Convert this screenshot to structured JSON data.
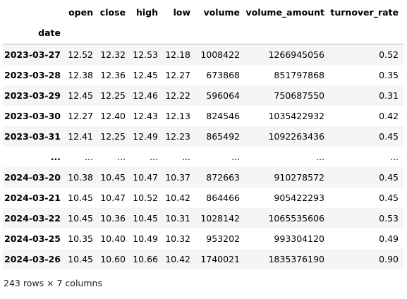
{
  "table": {
    "columns": [
      "open",
      "close",
      "high",
      "low",
      "volume",
      "volume_amount",
      "turnover_rate"
    ],
    "index_name": "date",
    "rows": [
      {
        "index": "2023-03-27",
        "values": [
          "12.52",
          "12.32",
          "12.53",
          "12.18",
          "1008422",
          "1266945056",
          "0.52"
        ]
      },
      {
        "index": "2023-03-28",
        "values": [
          "12.38",
          "12.36",
          "12.45",
          "12.27",
          "673868",
          "851797868",
          "0.35"
        ]
      },
      {
        "index": "2023-03-29",
        "values": [
          "12.45",
          "12.25",
          "12.46",
          "12.22",
          "596064",
          "750687550",
          "0.31"
        ]
      },
      {
        "index": "2023-03-30",
        "values": [
          "12.27",
          "12.40",
          "12.43",
          "12.13",
          "824546",
          "1035422932",
          "0.42"
        ]
      },
      {
        "index": "2023-03-31",
        "values": [
          "12.41",
          "12.25",
          "12.49",
          "12.23",
          "865492",
          "1092263436",
          "0.45"
        ]
      },
      {
        "index": "...",
        "values": [
          "...",
          "...",
          "...",
          "...",
          "...",
          "...",
          "..."
        ]
      },
      {
        "index": "2024-03-20",
        "values": [
          "10.38",
          "10.45",
          "10.47",
          "10.37",
          "872663",
          "910278572",
          "0.45"
        ]
      },
      {
        "index": "2024-03-21",
        "values": [
          "10.45",
          "10.47",
          "10.52",
          "10.42",
          "864466",
          "905422293",
          "0.45"
        ]
      },
      {
        "index": "2024-03-22",
        "values": [
          "10.45",
          "10.36",
          "10.45",
          "10.31",
          "1028142",
          "1065535606",
          "0.53"
        ]
      },
      {
        "index": "2024-03-25",
        "values": [
          "10.35",
          "10.40",
          "10.49",
          "10.32",
          "953202",
          "993304120",
          "0.49"
        ]
      },
      {
        "index": "2024-03-26",
        "values": [
          "10.45",
          "10.60",
          "10.66",
          "10.42",
          "1740021",
          "1835376190",
          "0.90"
        ]
      }
    ]
  },
  "shape_text": "243 rows × 7 columns"
}
